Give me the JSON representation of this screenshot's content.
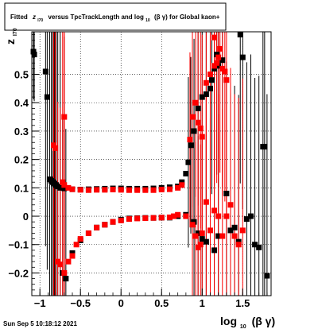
{
  "chart_data": {
    "type": "scatter",
    "title": {
      "pre": "Fitted",
      "z": "z",
      "z_sub": "I70",
      "mid": "versus TpcTrackLength and log",
      "log_sub": "10",
      "post": "(β γ) for Global kaon+"
    },
    "xlabel": {
      "main": "log",
      "sub": "10",
      "tail": "(β γ)"
    },
    "ylabel": {
      "main": "z",
      "sub": "I70"
    },
    "xlim": [
      -1.1,
      1.85
    ],
    "ylim": [
      -0.28,
      0.65
    ],
    "xticks": [
      {
        "v": -1,
        "label": "−1"
      },
      {
        "v": -0.5,
        "label": "−0.5"
      },
      {
        "v": 0,
        "label": "0"
      },
      {
        "v": 0.5,
        "label": "0.5"
      },
      {
        "v": 1,
        "label": "1"
      },
      {
        "v": 1.5,
        "label": "1.5"
      }
    ],
    "yticks": [
      {
        "v": -0.2,
        "label": "−0.2"
      },
      {
        "v": -0.1,
        "label": "−0.1"
      },
      {
        "v": 0,
        "label": "0"
      },
      {
        "v": 0.1,
        "label": "0.1"
      },
      {
        "v": 0.2,
        "label": "0.2"
      },
      {
        "v": 0.3,
        "label": "0.3"
      },
      {
        "v": 0.4,
        "label": "0.4"
      },
      {
        "v": 0.5,
        "label": "0.5"
      }
    ],
    "grid": true,
    "colors": {
      "black": "#000000",
      "red": "#ff0000"
    },
    "series": [
      {
        "color": "black",
        "marker": "square",
        "points": [
          [
            -1.08,
            0.58
          ],
          [
            -1.07,
            0.57
          ],
          [
            -0.93,
            0.51
          ],
          [
            -0.91,
            0.42
          ],
          [
            -0.88,
            0.13
          ],
          [
            -0.86,
            0.125
          ],
          [
            -0.84,
            0.12
          ],
          [
            -0.82,
            0.115
          ],
          [
            -0.8,
            0.11
          ],
          [
            -0.78,
            0.105
          ],
          [
            -0.75,
            0.1
          ],
          [
            -0.7,
            0.098
          ],
          [
            -0.6,
            0.095
          ],
          [
            -0.5,
            0.094
          ],
          [
            -0.4,
            0.095
          ],
          [
            -0.3,
            0.096
          ],
          [
            -0.2,
            0.097
          ],
          [
            -0.1,
            0.098
          ],
          [
            0,
            0.098
          ],
          [
            0.1,
            0.097
          ],
          [
            0.2,
            0.097
          ],
          [
            0.3,
            0.097
          ],
          [
            0.4,
            0.098
          ],
          [
            0.5,
            0.1
          ],
          [
            0.6,
            0.102
          ],
          [
            0.7,
            0.105
          ],
          [
            0.75,
            0.12
          ],
          [
            0.8,
            0.15
          ],
          [
            0.83,
            0.19
          ],
          [
            0.86,
            0.25
          ],
          [
            0.9,
            0.3
          ],
          [
            0.95,
            0.38
          ],
          [
            1.0,
            0.42
          ],
          [
            1.05,
            0.43
          ],
          [
            1.1,
            0.45
          ],
          [
            1.12,
            0.48
          ],
          [
            1.15,
            0.52
          ],
          [
            1.18,
            0.57
          ],
          [
            1.2,
            0.53
          ],
          [
            1.25,
            0.55
          ],
          [
            1.47,
            0.64
          ],
          [
            1.5,
            0.56
          ],
          [
            1.75,
            0.245
          ],
          [
            1.77,
            0.245
          ],
          [
            -0.72,
            -0.2
          ],
          [
            -0.68,
            -0.22
          ],
          [
            -0.6,
            -0.13
          ],
          [
            -0.5,
            -0.085
          ],
          [
            -0.4,
            -0.06
          ],
          [
            -0.3,
            -0.04
          ],
          [
            -0.2,
            -0.03
          ],
          [
            -0.1,
            -0.02
          ],
          [
            0,
            -0.012
          ],
          [
            0.1,
            -0.008
          ],
          [
            0.2,
            -0.007
          ],
          [
            0.3,
            -0.006
          ],
          [
            0.4,
            -0.006
          ],
          [
            0.5,
            -0.005
          ],
          [
            0.6,
            -0.005
          ],
          [
            0.7,
            0.0
          ],
          [
            0.8,
            0.005
          ],
          [
            0.9,
            -0.02
          ],
          [
            0.95,
            -0.06
          ],
          [
            1.0,
            -0.08
          ],
          [
            1.05,
            -0.09
          ],
          [
            1.15,
            -0.12
          ],
          [
            1.2,
            -0.07
          ],
          [
            1.3,
            0.08
          ],
          [
            1.35,
            -0.05
          ],
          [
            1.4,
            -0.04
          ],
          [
            1.45,
            -0.09
          ],
          [
            1.55,
            -0.01
          ],
          [
            1.6,
            0.0
          ],
          [
            1.65,
            -0.1
          ],
          [
            1.7,
            -0.11
          ],
          [
            1.8,
            -0.21
          ]
        ]
      },
      {
        "color": "red",
        "marker": "square",
        "points": [
          [
            -0.83,
            0.25
          ],
          [
            -0.81,
            0.24
          ],
          [
            -0.7,
            0.35
          ],
          [
            -0.72,
            0.12
          ],
          [
            -0.7,
            0.11
          ],
          [
            -0.65,
            0.1
          ],
          [
            -0.6,
            0.095
          ],
          [
            -0.5,
            0.093
          ],
          [
            -0.4,
            0.092
          ],
          [
            -0.3,
            0.093
          ],
          [
            -0.2,
            0.093
          ],
          [
            -0.1,
            0.094
          ],
          [
            0,
            0.093
          ],
          [
            0.1,
            0.092
          ],
          [
            0.2,
            0.092
          ],
          [
            0.3,
            0.092
          ],
          [
            0.4,
            0.092
          ],
          [
            0.5,
            0.094
          ],
          [
            0.6,
            0.095
          ],
          [
            0.7,
            0.1
          ],
          [
            0.75,
            0.11
          ],
          [
            0.85,
            0.27
          ],
          [
            0.88,
            0.35
          ],
          [
            0.92,
            0.4
          ],
          [
            0.95,
            0.33
          ],
          [
            0.98,
            0.31
          ],
          [
            1.0,
            0.28
          ],
          [
            1.05,
            0.47
          ],
          [
            1.1,
            0.5
          ],
          [
            1.15,
            0.53
          ],
          [
            1.18,
            0.54
          ],
          [
            1.2,
            0.56
          ],
          [
            1.22,
            0.59
          ],
          [
            1.25,
            0.52
          ],
          [
            1.28,
            0.51
          ],
          [
            1.15,
            0.63
          ],
          [
            1.3,
            0.48
          ],
          [
            -0.78,
            -0.16
          ],
          [
            -0.75,
            -0.17
          ],
          [
            -0.7,
            -0.2
          ],
          [
            -0.65,
            -0.16
          ],
          [
            -0.6,
            -0.14
          ],
          [
            -0.55,
            -0.1
          ],
          [
            -0.5,
            -0.08
          ],
          [
            -0.4,
            -0.06
          ],
          [
            -0.3,
            -0.04
          ],
          [
            -0.2,
            -0.03
          ],
          [
            -0.1,
            -0.02
          ],
          [
            0,
            -0.015
          ],
          [
            0.1,
            -0.01
          ],
          [
            0.2,
            -0.008
          ],
          [
            0.3,
            -0.007
          ],
          [
            0.4,
            -0.006
          ],
          [
            0.5,
            -0.005
          ],
          [
            0.6,
            -0.004
          ],
          [
            0.65,
            0.0
          ],
          [
            0.7,
            0.005
          ],
          [
            0.8,
            0.0
          ],
          [
            0.88,
            -0.03
          ],
          [
            0.92,
            -0.07
          ],
          [
            0.95,
            -0.11
          ],
          [
            0.98,
            -0.1
          ],
          [
            1.0,
            -0.06
          ],
          [
            1.05,
            0.05
          ],
          [
            1.1,
            -0.05
          ],
          [
            1.15,
            0.02
          ],
          [
            1.2,
            0.0
          ],
          [
            1.25,
            -0.07
          ],
          [
            1.3,
            0.0
          ],
          [
            1.35,
            0.04
          ],
          [
            1.4,
            -0.07
          ],
          [
            1.45,
            -0.1
          ],
          [
            1.5,
            -0.05
          ]
        ]
      }
    ],
    "footer": "Sun Sep  5 10:18:12 2021"
  }
}
